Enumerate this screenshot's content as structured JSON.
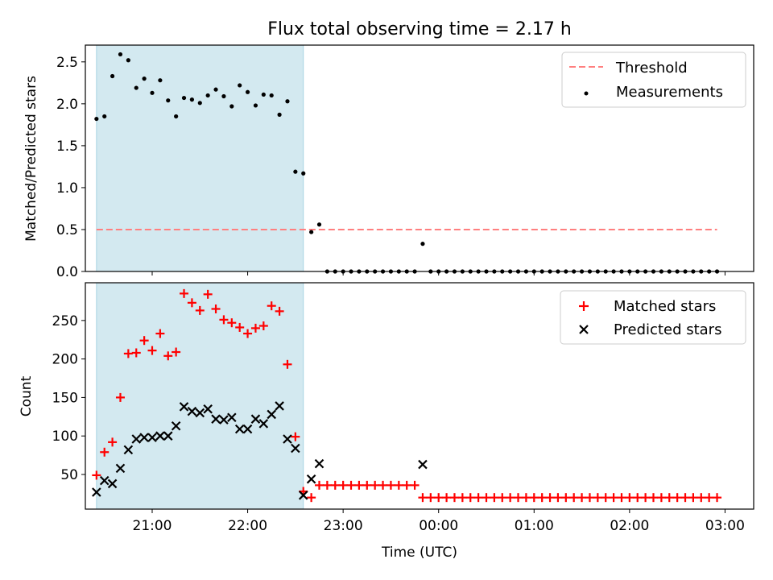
{
  "chart_data": [
    {
      "type": "scatter",
      "title": "Flux total observing time = 2.17 h",
      "xlabel": "",
      "ylabel": "Matched/Predicted stars",
      "xlim": [
        "20:18",
        "03:18"
      ],
      "ylim": [
        0,
        2.7
      ],
      "x_ticks": [
        "21:00",
        "22:00",
        "23:00",
        "00:00",
        "01:00",
        "02:00",
        "03:00"
      ],
      "y_ticks": [
        "0.0",
        "0.5",
        "1.0",
        "1.5",
        "2.0",
        "2.5"
      ],
      "x_tick_labels_visible": false,
      "grid": false,
      "legend": "top-right",
      "shaded_intervals": [
        {
          "start": "20:25",
          "end": "22:35",
          "color": "#d3e9f0"
        }
      ],
      "series": [
        {
          "name": "Threshold",
          "kind": "dashed-line",
          "color": "#ff7f7f",
          "points": [
            {
              "x": "20:25",
              "y": 0.5
            },
            {
              "x": "02:55",
              "y": 0.5
            }
          ]
        },
        {
          "name": "Measurements",
          "kind": "dots",
          "color": "#000000",
          "points": [
            {
              "x": "20:25",
              "y": 1.82
            },
            {
              "x": "20:30",
              "y": 1.85
            },
            {
              "x": "20:35",
              "y": 2.33
            },
            {
              "x": "20:40",
              "y": 2.59
            },
            {
              "x": "20:45",
              "y": 2.52
            },
            {
              "x": "20:50",
              "y": 2.19
            },
            {
              "x": "20:55",
              "y": 2.3
            },
            {
              "x": "21:00",
              "y": 2.13
            },
            {
              "x": "21:05",
              "y": 2.28
            },
            {
              "x": "21:10",
              "y": 2.04
            },
            {
              "x": "21:15",
              "y": 1.85
            },
            {
              "x": "21:20",
              "y": 2.07
            },
            {
              "x": "21:25",
              "y": 2.05
            },
            {
              "x": "21:30",
              "y": 2.01
            },
            {
              "x": "21:35",
              "y": 2.1
            },
            {
              "x": "21:40",
              "y": 2.17
            },
            {
              "x": "21:45",
              "y": 2.09
            },
            {
              "x": "21:50",
              "y": 1.97
            },
            {
              "x": "21:55",
              "y": 2.22
            },
            {
              "x": "22:00",
              "y": 2.14
            },
            {
              "x": "22:05",
              "y": 1.98
            },
            {
              "x": "22:10",
              "y": 2.11
            },
            {
              "x": "22:15",
              "y": 2.1
            },
            {
              "x": "22:20",
              "y": 1.87
            },
            {
              "x": "22:25",
              "y": 2.03
            },
            {
              "x": "22:30",
              "y": 1.19
            },
            {
              "x": "22:35",
              "y": 1.17
            },
            {
              "x": "22:40",
              "y": 0.47
            },
            {
              "x": "22:45",
              "y": 0.56
            },
            {
              "x": "22:50",
              "y": 0
            },
            {
              "x": "22:55",
              "y": 0
            },
            {
              "x": "23:00",
              "y": 0
            },
            {
              "x": "23:05",
              "y": 0
            },
            {
              "x": "23:10",
              "y": 0
            },
            {
              "x": "23:15",
              "y": 0
            },
            {
              "x": "23:20",
              "y": 0
            },
            {
              "x": "23:25",
              "y": 0
            },
            {
              "x": "23:30",
              "y": 0
            },
            {
              "x": "23:35",
              "y": 0
            },
            {
              "x": "23:40",
              "y": 0
            },
            {
              "x": "23:45",
              "y": 0
            },
            {
              "x": "23:50",
              "y": 0.33
            },
            {
              "x": "23:55",
              "y": 0
            },
            {
              "x": "00:00",
              "y": 0
            },
            {
              "x": "00:05",
              "y": 0
            },
            {
              "x": "00:10",
              "y": 0
            },
            {
              "x": "00:15",
              "y": 0
            },
            {
              "x": "00:20",
              "y": 0
            },
            {
              "x": "00:25",
              "y": 0
            },
            {
              "x": "00:30",
              "y": 0
            },
            {
              "x": "00:35",
              "y": 0
            },
            {
              "x": "00:40",
              "y": 0
            },
            {
              "x": "00:45",
              "y": 0
            },
            {
              "x": "00:50",
              "y": 0
            },
            {
              "x": "00:55",
              "y": 0
            },
            {
              "x": "01:00",
              "y": 0
            },
            {
              "x": "01:05",
              "y": 0
            },
            {
              "x": "01:10",
              "y": 0
            },
            {
              "x": "01:15",
              "y": 0
            },
            {
              "x": "01:20",
              "y": 0
            },
            {
              "x": "01:25",
              "y": 0
            },
            {
              "x": "01:30",
              "y": 0
            },
            {
              "x": "01:35",
              "y": 0
            },
            {
              "x": "01:40",
              "y": 0
            },
            {
              "x": "01:45",
              "y": 0
            },
            {
              "x": "01:50",
              "y": 0
            },
            {
              "x": "01:55",
              "y": 0
            },
            {
              "x": "02:00",
              "y": 0
            },
            {
              "x": "02:05",
              "y": 0
            },
            {
              "x": "02:10",
              "y": 0
            },
            {
              "x": "02:15",
              "y": 0
            },
            {
              "x": "02:20",
              "y": 0
            },
            {
              "x": "02:25",
              "y": 0
            },
            {
              "x": "02:30",
              "y": 0
            },
            {
              "x": "02:35",
              "y": 0
            },
            {
              "x": "02:40",
              "y": 0
            },
            {
              "x": "02:45",
              "y": 0
            },
            {
              "x": "02:50",
              "y": 0
            },
            {
              "x": "02:55",
              "y": 0
            }
          ]
        }
      ]
    },
    {
      "type": "scatter",
      "title": "",
      "xlabel": "Time (UTC)",
      "ylabel": "Count",
      "xlim": [
        "20:18",
        "03:18"
      ],
      "ylim": [
        5,
        299
      ],
      "x_ticks": [
        "21:00",
        "22:00",
        "23:00",
        "00:00",
        "01:00",
        "02:00",
        "03:00"
      ],
      "y_ticks": [
        "50",
        "100",
        "150",
        "200",
        "250"
      ],
      "grid": false,
      "legend": "top-right",
      "shaded_intervals": [
        {
          "start": "20:25",
          "end": "22:35",
          "color": "#d3e9f0"
        }
      ],
      "series": [
        {
          "name": "Matched stars",
          "marker": "+",
          "color": "#ff0000",
          "points": [
            {
              "x": "20:25",
              "y": 49
            },
            {
              "x": "20:30",
              "y": 79
            },
            {
              "x": "20:35",
              "y": 92
            },
            {
              "x": "20:40",
              "y": 150
            },
            {
              "x": "20:45",
              "y": 207
            },
            {
              "x": "20:50",
              "y": 208
            },
            {
              "x": "20:55",
              "y": 224
            },
            {
              "x": "21:00",
              "y": 211
            },
            {
              "x": "21:05",
              "y": 233
            },
            {
              "x": "21:10",
              "y": 204
            },
            {
              "x": "21:15",
              "y": 209
            },
            {
              "x": "21:20",
              "y": 285
            },
            {
              "x": "21:25",
              "y": 273
            },
            {
              "x": "21:30",
              "y": 263
            },
            {
              "x": "21:35",
              "y": 284
            },
            {
              "x": "21:40",
              "y": 265
            },
            {
              "x": "21:45",
              "y": 251
            },
            {
              "x": "21:50",
              "y": 247
            },
            {
              "x": "21:55",
              "y": 241
            },
            {
              "x": "22:00",
              "y": 233
            },
            {
              "x": "22:05",
              "y": 240
            },
            {
              "x": "22:10",
              "y": 243
            },
            {
              "x": "22:15",
              "y": 269
            },
            {
              "x": "22:20",
              "y": 262
            },
            {
              "x": "22:25",
              "y": 193
            },
            {
              "x": "22:30",
              "y": 99
            },
            {
              "x": "22:35",
              "y": 28
            },
            {
              "x": "22:40",
              "y": 20
            },
            {
              "x": "22:45",
              "y": 36
            },
            {
              "x": "22:50",
              "y": 36
            },
            {
              "x": "22:55",
              "y": 36
            },
            {
              "x": "23:00",
              "y": 36
            },
            {
              "x": "23:05",
              "y": 36
            },
            {
              "x": "23:10",
              "y": 36
            },
            {
              "x": "23:15",
              "y": 36
            },
            {
              "x": "23:20",
              "y": 36
            },
            {
              "x": "23:25",
              "y": 36
            },
            {
              "x": "23:30",
              "y": 36
            },
            {
              "x": "23:35",
              "y": 36
            },
            {
              "x": "23:40",
              "y": 36
            },
            {
              "x": "23:45",
              "y": 36
            },
            {
              "x": "23:50",
              "y": 20
            },
            {
              "x": "23:55",
              "y": 20
            },
            {
              "x": "00:00",
              "y": 20
            },
            {
              "x": "00:05",
              "y": 20
            },
            {
              "x": "00:10",
              "y": 20
            },
            {
              "x": "00:15",
              "y": 20
            },
            {
              "x": "00:20",
              "y": 20
            },
            {
              "x": "00:25",
              "y": 20
            },
            {
              "x": "00:30",
              "y": 20
            },
            {
              "x": "00:35",
              "y": 20
            },
            {
              "x": "00:40",
              "y": 20
            },
            {
              "x": "00:45",
              "y": 20
            },
            {
              "x": "00:50",
              "y": 20
            },
            {
              "x": "00:55",
              "y": 20
            },
            {
              "x": "01:00",
              "y": 20
            },
            {
              "x": "01:05",
              "y": 20
            },
            {
              "x": "01:10",
              "y": 20
            },
            {
              "x": "01:15",
              "y": 20
            },
            {
              "x": "01:20",
              "y": 20
            },
            {
              "x": "01:25",
              "y": 20
            },
            {
              "x": "01:30",
              "y": 20
            },
            {
              "x": "01:35",
              "y": 20
            },
            {
              "x": "01:40",
              "y": 20
            },
            {
              "x": "01:45",
              "y": 20
            },
            {
              "x": "01:50",
              "y": 20
            },
            {
              "x": "01:55",
              "y": 20
            },
            {
              "x": "02:00",
              "y": 20
            },
            {
              "x": "02:05",
              "y": 20
            },
            {
              "x": "02:10",
              "y": 20
            },
            {
              "x": "02:15",
              "y": 20
            },
            {
              "x": "02:20",
              "y": 20
            },
            {
              "x": "02:25",
              "y": 20
            },
            {
              "x": "02:30",
              "y": 20
            },
            {
              "x": "02:35",
              "y": 20
            },
            {
              "x": "02:40",
              "y": 20
            },
            {
              "x": "02:45",
              "y": 20
            },
            {
              "x": "02:50",
              "y": 20
            },
            {
              "x": "02:55",
              "y": 20
            }
          ]
        },
        {
          "name": "Predicted stars",
          "marker": "x",
          "color": "#000000",
          "points": [
            {
              "x": "20:25",
              "y": 27
            },
            {
              "x": "20:30",
              "y": 42
            },
            {
              "x": "20:35",
              "y": 38
            },
            {
              "x": "20:40",
              "y": 58
            },
            {
              "x": "20:45",
              "y": 82
            },
            {
              "x": "20:50",
              "y": 96
            },
            {
              "x": "20:55",
              "y": 98
            },
            {
              "x": "21:00",
              "y": 98
            },
            {
              "x": "21:05",
              "y": 100
            },
            {
              "x": "21:10",
              "y": 100
            },
            {
              "x": "21:15",
              "y": 113
            },
            {
              "x": "21:20",
              "y": 138
            },
            {
              "x": "21:25",
              "y": 132
            },
            {
              "x": "21:30",
              "y": 130
            },
            {
              "x": "21:35",
              "y": 135
            },
            {
              "x": "21:40",
              "y": 122
            },
            {
              "x": "21:45",
              "y": 121
            },
            {
              "x": "21:50",
              "y": 124
            },
            {
              "x": "21:55",
              "y": 109
            },
            {
              "x": "22:00",
              "y": 109
            },
            {
              "x": "22:05",
              "y": 122
            },
            {
              "x": "22:10",
              "y": 116
            },
            {
              "x": "22:15",
              "y": 128
            },
            {
              "x": "22:20",
              "y": 139
            },
            {
              "x": "22:25",
              "y": 96
            },
            {
              "x": "22:30",
              "y": 84
            },
            {
              "x": "22:35",
              "y": 23
            },
            {
              "x": "22:40",
              "y": 44
            },
            {
              "x": "22:45",
              "y": 64
            },
            {
              "x": "23:50",
              "y": 63
            }
          ]
        }
      ]
    }
  ]
}
